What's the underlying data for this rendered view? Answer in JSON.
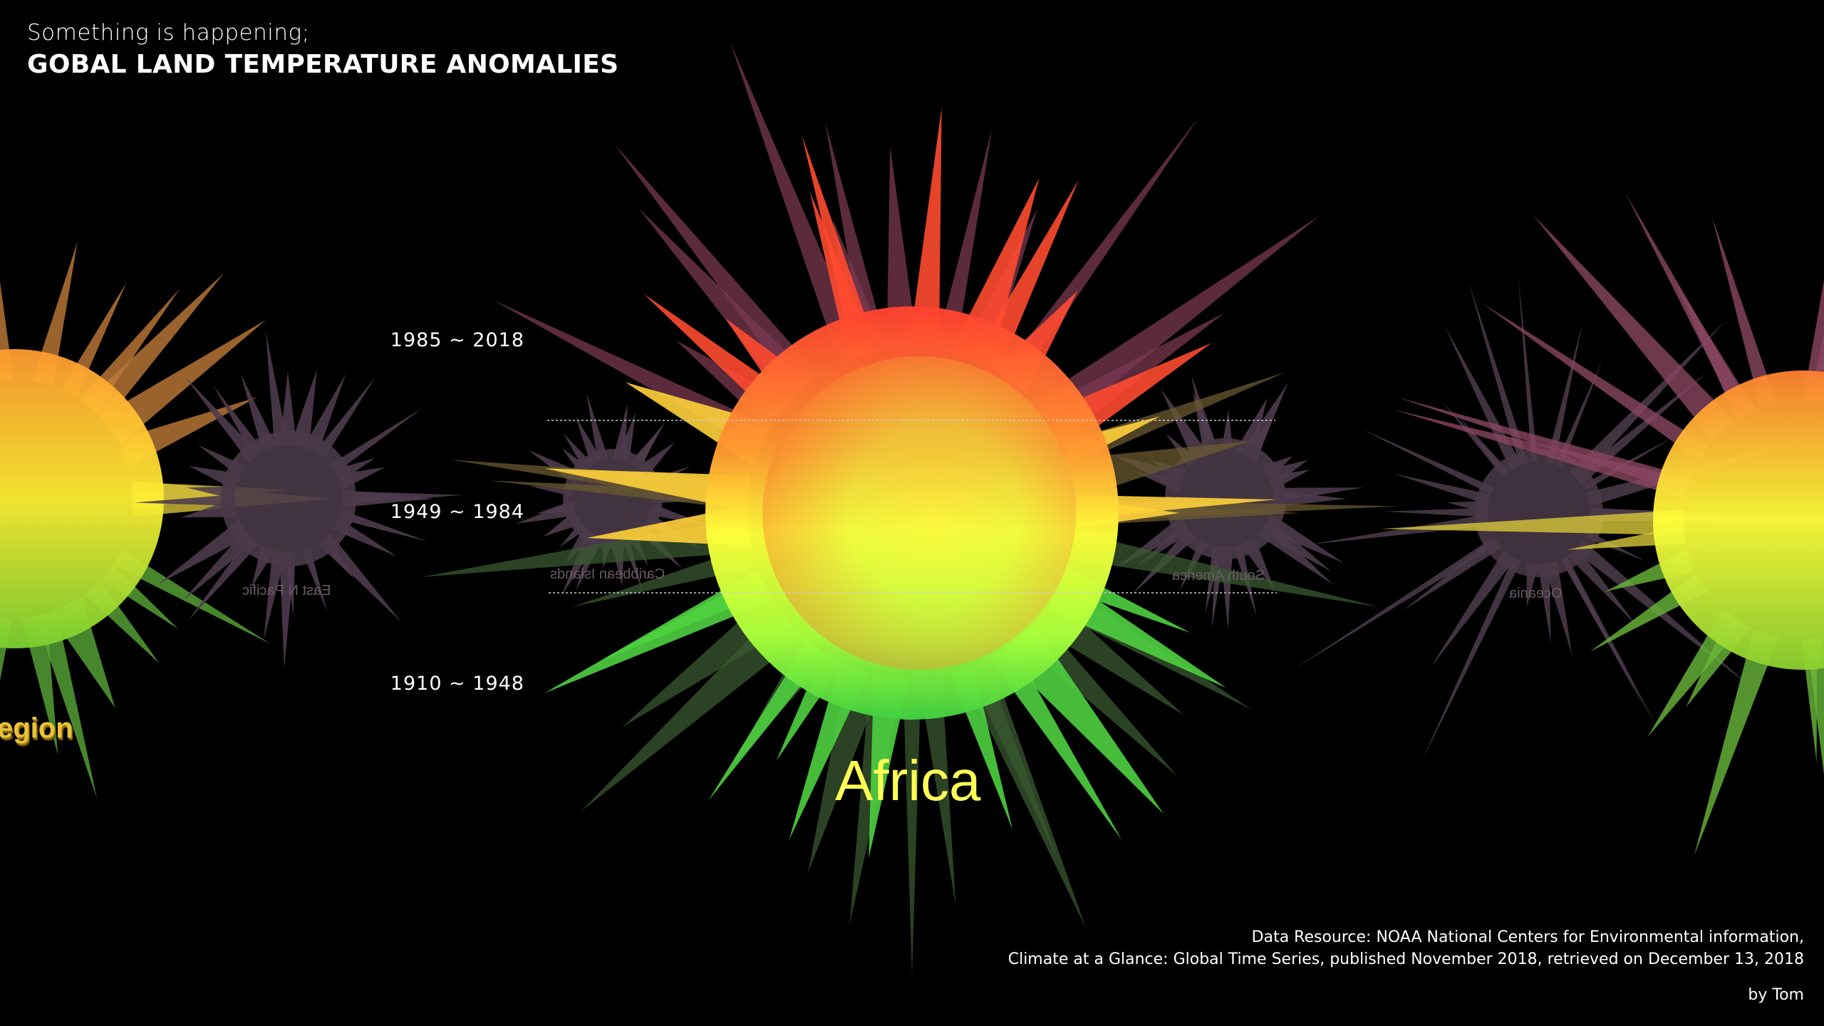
{
  "header": {
    "subtitle": "Something is happening;",
    "title": "GOBAL LAND TEMPERATURE ANOMALIES"
  },
  "periods": [
    "1985 ~ 2018",
    "1949 ~ 1984",
    "1910 ~ 1948"
  ],
  "regions": {
    "focus": "Africa",
    "left_small": "East N Pacific",
    "center_left": "Caribbean Islands",
    "center_right": "South America",
    "right_small": "Oceania",
    "left_edge_partial": "egion"
  },
  "footer": {
    "source_line1": "Data Resource: NOAA National Centers for Environmental information,",
    "source_line2": "Climate at a Glance: Global Time Series, published November 2018, retrieved on December 13, 2018",
    "author": "by Tom"
  },
  "colors": {
    "background": "#000000",
    "warm": "#ff3b2e",
    "mid": "#ffff3a",
    "cool": "#30d030",
    "muted_region": "#6a5a66",
    "guide_line": "#cccccc"
  }
}
